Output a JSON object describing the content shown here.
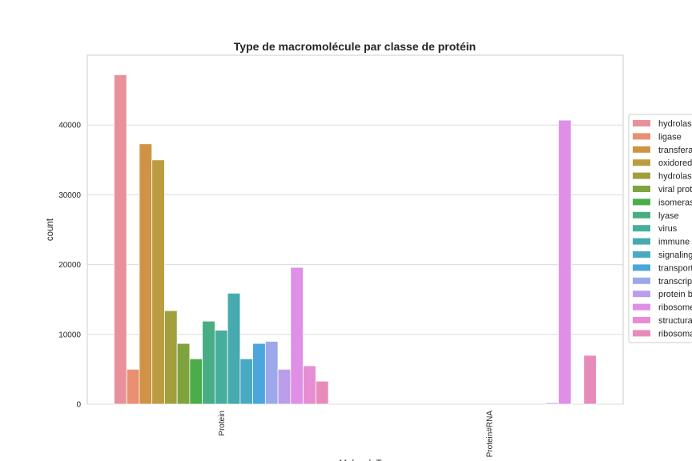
{
  "chart_data": {
    "type": "bar",
    "title": "Type de macromolécule par classe de protéin",
    "xlabel": "macroMoleculeType",
    "ylabel": "count",
    "categories": [
      "Protein",
      "Protein#RNA"
    ],
    "ylim": [
      0,
      50000
    ],
    "yticks": [
      0,
      10000,
      20000,
      30000,
      40000
    ],
    "ytick_labels": [
      "0",
      "10000",
      "20000",
      "30000",
      "40000"
    ],
    "grid": true,
    "legend_position": "right",
    "series": [
      {
        "name": "hydrolase",
        "color": "#e8919b",
        "values": [
          47200,
          0
        ]
      },
      {
        "name": "ligase",
        "color": "#e89070",
        "values": [
          5000,
          0
        ]
      },
      {
        "name": "transferase",
        "color": "#d09345",
        "values": [
          37300,
          0
        ]
      },
      {
        "name": "oxidoreductase",
        "color": "#bb9c41",
        "values": [
          35000,
          0
        ]
      },
      {
        "name": "hydrolase/hydrolase inhibitor",
        "color": "#a19f3c",
        "values": [
          13400,
          0
        ]
      },
      {
        "name": "viral protein",
        "color": "#7fa43f",
        "values": [
          8700,
          0
        ]
      },
      {
        "name": "isomerase",
        "color": "#4aad4a",
        "values": [
          6500,
          0
        ]
      },
      {
        "name": "lyase",
        "color": "#49ad84",
        "values": [
          11900,
          0
        ]
      },
      {
        "name": "virus",
        "color": "#47ae9e",
        "values": [
          10600,
          0
        ]
      },
      {
        "name": "immune system",
        "color": "#46aaae",
        "values": [
          15900,
          0
        ]
      },
      {
        "name": "signaling protein",
        "color": "#48aac2",
        "values": [
          6500,
          0
        ]
      },
      {
        "name": "transport protein",
        "color": "#4aa6dc",
        "values": [
          8700,
          0
        ]
      },
      {
        "name": "transcription",
        "color": "#9ca8ea",
        "values": [
          9000,
          0
        ]
      },
      {
        "name": "protein binding",
        "color": "#bc9de9",
        "values": [
          5000,
          200
        ]
      },
      {
        "name": "ribosome",
        "color": "#df8fe6",
        "values": [
          19600,
          40700
        ]
      },
      {
        "name": "structural genomics",
        "color": "#e78dd4",
        "values": [
          5500,
          0
        ]
      },
      {
        "name": "ribosomal protein",
        "color": "#e78cba",
        "values": [
          3300,
          7000
        ]
      }
    ],
    "legend_labels": [
      "hydrolase",
      "ligase",
      "transferase",
      "oxidoreductase",
      "hydrolase/hydrolase inhibitor",
      "viral protein",
      "isomerase",
      "lyase",
      "virus",
      "immune system",
      "signaling protein",
      "transport protein",
      "transcription",
      "protein binding",
      "ribosome",
      "structural genomics",
      "ribosomal protein"
    ]
  }
}
